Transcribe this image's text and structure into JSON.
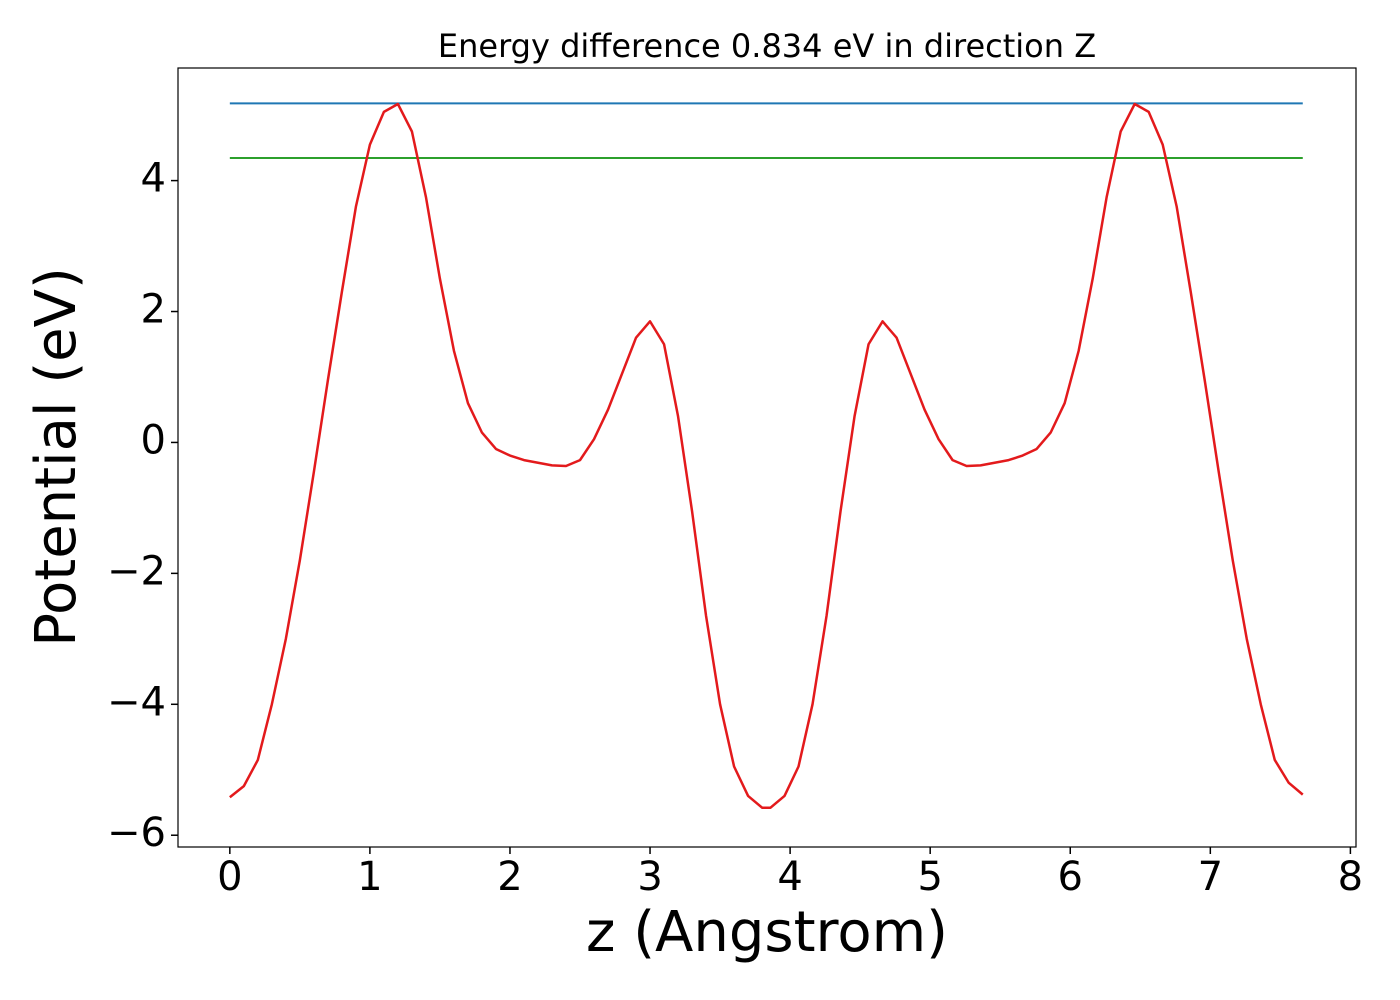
{
  "chart_data": {
    "type": "line",
    "title": "Energy difference 0.834 eV in direction Z",
    "x_label": "z (Angstrom)",
    "y_label": "Potential (eV)",
    "xlim": [
      -0.37,
      8.04
    ],
    "ylim": [
      -6.18,
      5.72
    ],
    "xticks": [
      0,
      1,
      2,
      3,
      4,
      5,
      6,
      7,
      8
    ],
    "yticks": [
      {
        "value": -6,
        "label": "−6"
      },
      {
        "value": -4,
        "label": "−4"
      },
      {
        "value": -2,
        "label": "−2"
      },
      0,
      2,
      4
    ],
    "hlines": [
      {
        "y": 5.18,
        "xmin": 0,
        "xmax": 7.66,
        "color": "#1f77b4"
      },
      {
        "y": 4.346,
        "xmin": 0,
        "xmax": 7.66,
        "color": "#2ca02c"
      }
    ],
    "series": [
      {
        "color": "#e31a1c",
        "x": [
          0,
          0.1,
          0.2,
          0.3,
          0.4,
          0.5,
          0.6,
          0.7,
          0.8,
          0.9,
          1.0,
          1.1,
          1.2,
          1.3,
          1.4,
          1.5,
          1.6,
          1.7,
          1.8,
          1.9,
          2.0,
          2.1,
          2.2,
          2.3,
          2.4,
          2.5,
          2.6,
          2.7,
          2.8,
          2.9,
          3.0,
          3.1,
          3.2,
          3.3,
          3.4,
          3.5,
          3.6,
          3.7,
          3.8,
          3.86,
          3.96,
          4.06,
          4.16,
          4.26,
          4.36,
          4.46,
          4.56,
          4.66,
          4.76,
          4.86,
          4.96,
          5.06,
          5.16,
          5.26,
          5.36,
          5.46,
          5.56,
          5.66,
          5.76,
          5.86,
          5.96,
          6.06,
          6.16,
          6.26,
          6.36,
          6.46,
          6.56,
          6.66,
          6.76,
          6.86,
          6.96,
          7.06,
          7.16,
          7.26,
          7.36,
          7.46,
          7.56,
          7.66
        ],
        "values": [
          -5.42,
          -5.25,
          -4.85,
          -4.0,
          -3.0,
          -1.8,
          -0.45,
          0.95,
          2.3,
          3.6,
          4.55,
          5.05,
          5.17,
          4.75,
          3.75,
          2.5,
          1.4,
          0.6,
          0.15,
          -0.1,
          -0.2,
          -0.27,
          -0.31,
          -0.35,
          -0.36,
          -0.27,
          0.05,
          0.5,
          1.05,
          1.6,
          1.85,
          1.5,
          0.4,
          -1.05,
          -2.65,
          -4.0,
          -4.95,
          -5.4,
          -5.58,
          -5.58,
          -5.4,
          -4.95,
          -4.0,
          -2.65,
          -1.05,
          0.4,
          1.5,
          1.85,
          1.6,
          1.05,
          0.5,
          0.05,
          -0.27,
          -0.36,
          -0.35,
          -0.31,
          -0.27,
          -0.2,
          -0.1,
          0.15,
          0.6,
          1.4,
          2.5,
          3.75,
          4.75,
          5.17,
          5.05,
          4.55,
          3.6,
          2.3,
          0.95,
          -0.45,
          -1.8,
          -3.0,
          -4.0,
          -4.85,
          -5.2,
          -5.38
        ]
      }
    ]
  }
}
